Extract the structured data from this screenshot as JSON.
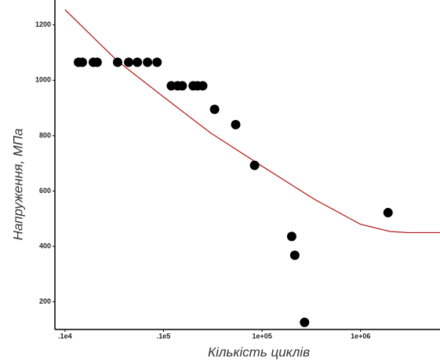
{
  "chart_data": {
    "type": "scatter",
    "x_label": "Кількість циклів",
    "y_label": "Напруження, МПа",
    "xscale": "log",
    "xlim": [
      790,
      6400000
    ],
    "ylim": [
      100,
      1290
    ],
    "xticks": [
      {
        "value": 1000,
        "label": ".1e4"
      },
      {
        "value": 10000,
        "label": ".1e5"
      },
      {
        "value": 100000,
        "label": "1e+05"
      },
      {
        "value": 1000000,
        "label": "1e+06"
      }
    ],
    "yticks": [
      200,
      400,
      600,
      800,
      1000,
      1200
    ],
    "grid": false,
    "series": [
      {
        "type": "line",
        "color": "#b22222",
        "x": [
          1000,
          3400,
          10000,
          30000,
          100000,
          340000,
          1000000,
          2000000,
          3000000,
          6400000
        ],
        "values": [
          1255,
          1070,
          940,
          810,
          690,
          570,
          480,
          454,
          450,
          450
        ]
      },
      {
        "type": "scatter",
        "color": "#000000",
        "x": [
          1370,
          1500,
          1940,
          2120,
          3420,
          4430,
          5430,
          6880,
          8600,
          12000,
          13900,
          15500,
          20000,
          22200,
          25000,
          33000,
          54000,
          84000,
          200000,
          215000,
          270000,
          1900000
        ],
        "values": [
          1065,
          1065,
          1065,
          1065,
          1065,
          1065,
          1065,
          1065,
          1065,
          980,
          980,
          980,
          980,
          980,
          980,
          895,
          840,
          693,
          436,
          368,
          126,
          522
        ]
      }
    ]
  }
}
